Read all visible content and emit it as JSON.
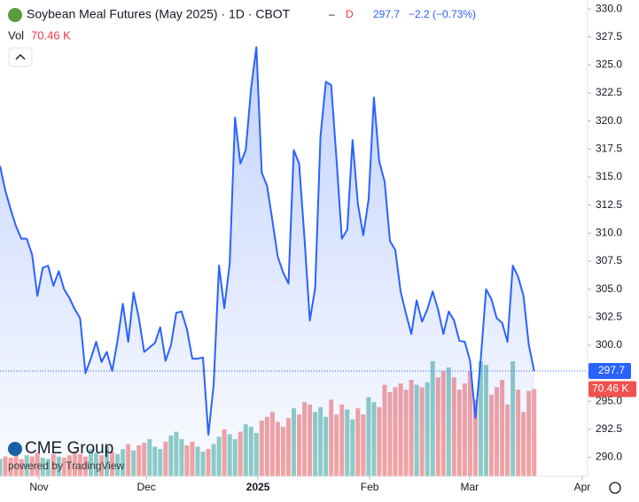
{
  "chart_data": {
    "type": "line",
    "title": "Soybean Meal Futures (May 2025) · 1D · CBOT",
    "flag": "D",
    "change": "−2.2 (−0.73%)",
    "color": "#2962ff",
    "x": [
      0,
      1,
      2,
      3,
      4,
      5,
      6,
      7,
      8,
      9,
      10,
      11,
      12,
      13,
      14,
      15,
      16,
      17,
      18,
      19,
      20,
      21,
      22,
      23,
      24,
      25,
      26,
      27,
      28,
      29,
      30,
      31,
      32,
      33,
      34,
      35,
      36,
      37,
      38,
      39,
      40,
      41,
      42,
      43,
      44,
      45,
      46,
      47,
      48,
      49,
      50,
      51,
      52,
      53,
      54,
      55,
      56,
      57,
      58,
      59,
      60,
      61,
      62,
      63,
      64,
      65,
      66,
      67,
      68,
      69,
      70,
      71,
      72,
      73,
      74,
      75,
      76,
      77,
      78,
      79,
      80,
      81,
      82,
      83,
      84,
      85,
      86,
      87,
      88,
      89,
      90,
      91,
      92,
      93,
      94,
      95,
      96,
      97,
      98,
      99,
      100
    ],
    "values": [
      316.0,
      313.8,
      312.1,
      310.6,
      309.5,
      309.5,
      308.1,
      304.4,
      306.9,
      307.1,
      305.3,
      306.6,
      305.0,
      304.2,
      303.2,
      302.4,
      297.5,
      298.8,
      300.3,
      298.5,
      299.4,
      297.7,
      300.4,
      303.7,
      300.3,
      304.7,
      302.4,
      299.4,
      299.8,
      300.2,
      301.6,
      298.6,
      300.0,
      302.9,
      303.0,
      301.4,
      298.8,
      298.8,
      298.9,
      292.0,
      296.5,
      307.1,
      303.3,
      307.3,
      320.3,
      316.2,
      317.4,
      322.9,
      326.6,
      315.4,
      314.2,
      311.1,
      307.9,
      306.5,
      305.5,
      317.4,
      316.2,
      309.5,
      302.2,
      305.1,
      318.6,
      323.5,
      323.2,
      316.6,
      309.5,
      310.3,
      318.3,
      312.6,
      309.8,
      313.0,
      322.1,
      316.4,
      314.6,
      309.3,
      308.5,
      304.8,
      302.8,
      301.0,
      304.0,
      302.1,
      303.2,
      304.8,
      303.2,
      301.0,
      303.0,
      302.2,
      300.4,
      300.3,
      298.6,
      293.5,
      298.8,
      305.0,
      304.1,
      302.4,
      302.0,
      300.3,
      307.1,
      306.1,
      304.4,
      300.0,
      297.7
    ],
    "xlim": [
      0,
      110
    ],
    "xticks": [
      {
        "value": 7.3,
        "label": "Nov"
      },
      {
        "value": 27.4,
        "label": "Dec"
      },
      {
        "value": 48.3,
        "label": "2025"
      },
      {
        "value": 69.2,
        "label": "Feb"
      },
      {
        "value": 87.9,
        "label": "Mar"
      },
      {
        "value": 109,
        "label": "Apr"
      }
    ],
    "ylim": [
      288.3,
      330.8
    ],
    "yticks": [
      {
        "value": 290,
        "label": "290.0"
      },
      {
        "value": 292.5,
        "label": "292.5"
      },
      {
        "value": 295,
        "label": "295.0"
      },
      {
        "value": 297.5,
        "label": "297.5"
      },
      {
        "value": 300,
        "label": "300.0"
      },
      {
        "value": 302.5,
        "label": "302.5"
      },
      {
        "value": 305,
        "label": "305.0"
      },
      {
        "value": 307.5,
        "label": "307.5"
      },
      {
        "value": 310,
        "label": "310.0"
      },
      {
        "value": 312.5,
        "label": "312.5"
      },
      {
        "value": 315,
        "label": "315.0"
      },
      {
        "value": 317.5,
        "label": "317.5"
      },
      {
        "value": 320,
        "label": "320.0"
      },
      {
        "value": 322.5,
        "label": "322.5"
      },
      {
        "value": 325,
        "label": "325.0"
      },
      {
        "value": 327.5,
        "label": "327.5"
      },
      {
        "value": 330,
        "label": "330.0"
      }
    ],
    "volume": {
      "label": "Vol",
      "last_label": "70.46 K",
      "up_color": "#8fcdc5",
      "down_color": "#f5a3a1",
      "values": [
        14,
        16,
        15,
        18,
        14,
        17,
        16,
        19,
        15,
        14,
        18,
        16,
        15,
        17,
        20,
        18,
        16,
        22,
        19,
        17,
        24,
        20,
        18,
        22,
        26,
        21,
        25,
        27,
        30,
        24,
        22,
        28,
        33,
        36,
        30,
        25,
        28,
        24,
        20,
        22,
        26,
        32,
        38,
        34,
        30,
        36,
        42,
        40,
        35,
        45,
        48,
        52,
        44,
        40,
        47,
        55,
        50,
        60,
        58,
        52,
        56,
        48,
        62,
        50,
        58,
        54,
        46,
        55,
        50,
        64,
        60,
        56,
        74,
        68,
        72,
        75,
        70,
        78,
        74,
        72,
        76,
        93,
        80,
        85,
        88,
        80,
        70,
        75,
        85,
        62,
        93,
        90,
        66,
        72,
        78,
        58,
        93,
        70,
        52,
        69,
        70.46
      ]
    }
  },
  "branding": {
    "logo": "CME Group",
    "powered": "powered by TradingView"
  }
}
